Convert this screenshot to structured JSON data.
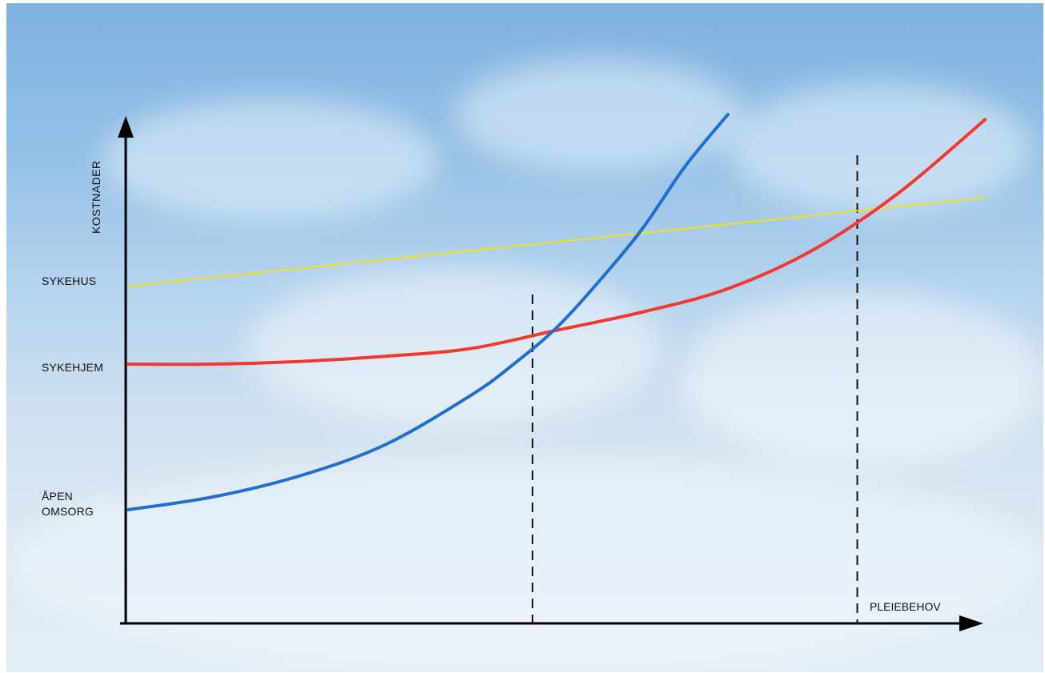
{
  "chart_data": {
    "type": "line",
    "xlabel": "PLEIEBEHOV",
    "ylabel": "KOSTNADER",
    "y_category_labels": [
      "SYKEHUS",
      "SYKEHJEM",
      "ÅPEN OMSORG"
    ],
    "xlim": [
      0,
      1
    ],
    "ylim": [
      0,
      1
    ],
    "grid": false,
    "series": [
      {
        "label": "ÅPEN OMSORG",
        "color": "#1f6fd0",
        "x": [
          0,
          0.1,
          0.2,
          0.3,
          0.4,
          0.45,
          0.5,
          0.55,
          0.6,
          0.65,
          0.7
        ],
        "y": [
          0.22,
          0.245,
          0.285,
          0.345,
          0.44,
          0.5,
          0.57,
          0.66,
          0.76,
          0.88,
          0.98
        ]
      },
      {
        "label": "SYKEHJEM",
        "color": "#f03a30",
        "x": [
          0,
          0.1,
          0.2,
          0.3,
          0.4,
          0.5,
          0.6,
          0.7,
          0.8,
          0.9,
          1.0
        ],
        "y": [
          0.5,
          0.5,
          0.505,
          0.515,
          0.53,
          0.565,
          0.6,
          0.645,
          0.72,
          0.83,
          0.97
        ]
      },
      {
        "label": "SYKEHUS",
        "color": "#f2e11a",
        "x": [
          0,
          1.0
        ],
        "y": [
          0.65,
          0.82
        ]
      }
    ],
    "intersections_x": [
      0.472,
      0.851
    ]
  }
}
